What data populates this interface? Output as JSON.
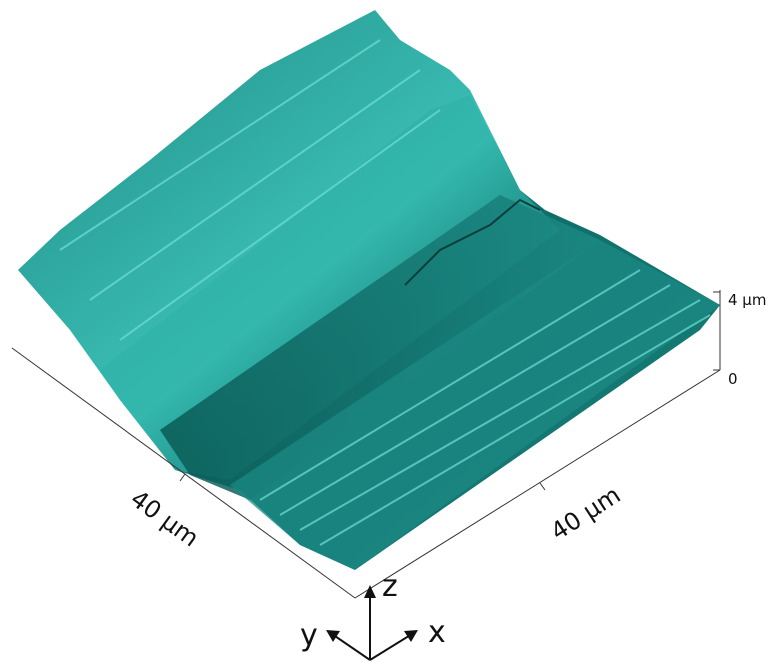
{
  "axes": {
    "x_label": "40 µm",
    "y_label": "40 µm",
    "z_top": "4 µm",
    "z_bottom": "0"
  },
  "triad": {
    "z": "z",
    "y": "y",
    "x": "x"
  }
}
